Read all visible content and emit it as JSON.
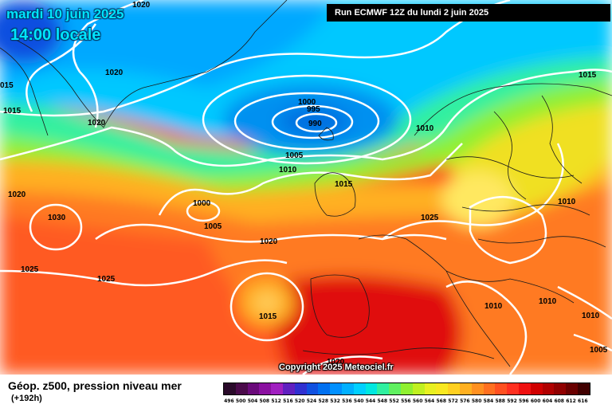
{
  "header": {
    "date": "mardi 10 juin 2025",
    "time": "14:00 locale",
    "run": "Run ECMWF 12Z du lundi 2 juin 2025",
    "copyright": "Copyright 2025 Meteociel.fr"
  },
  "legend": {
    "title": "Géop. z500, pression niveau mer",
    "subtitle": "(+192h)",
    "scale_values": [
      "496",
      "500",
      "504",
      "508",
      "512",
      "516",
      "520",
      "524",
      "528",
      "532",
      "536",
      "540",
      "544",
      "548",
      "552",
      "556",
      "560",
      "564",
      "568",
      "572",
      "576",
      "580",
      "584",
      "588",
      "592",
      "596",
      "600",
      "604",
      "608",
      "612",
      "616"
    ],
    "scale_colors": [
      "#2a0a2a",
      "#4a0a4a",
      "#6a0a7a",
      "#8a10a0",
      "#a020c0",
      "#6020c0",
      "#3030d0",
      "#1050e0",
      "#0070f0",
      "#0090ff",
      "#00b0ff",
      "#00d0ff",
      "#00e8e0",
      "#30f0a0",
      "#60f060",
      "#90f030",
      "#c0f020",
      "#e8f020",
      "#f8e820",
      "#ffd020",
      "#ffb020",
      "#ff9020",
      "#ff7020",
      "#ff5020",
      "#ff3020",
      "#ef1010",
      "#d00000",
      "#b00000",
      "#900000",
      "#6a0000",
      "#400000"
    ]
  },
  "map": {
    "pressure_labels": [
      {
        "text": "1020"
      },
      {
        "text": "1020"
      },
      {
        "text": "1020"
      },
      {
        "text": "015"
      },
      {
        "text": "1015"
      },
      {
        "text": "1000"
      },
      {
        "text": "995"
      },
      {
        "text": "990"
      },
      {
        "text": "1005"
      },
      {
        "text": "1010"
      },
      {
        "text": "1010"
      },
      {
        "text": "1015"
      },
      {
        "text": "1000"
      },
      {
        "text": "1005"
      },
      {
        "text": "1020"
      },
      {
        "text": "1020"
      },
      {
        "text": "1030"
      },
      {
        "text": "1025"
      },
      {
        "text": "1025"
      },
      {
        "text": "1015"
      },
      {
        "text": "1025"
      },
      {
        "text": "1010"
      },
      {
        "text": "1015"
      },
      {
        "text": "1010"
      },
      {
        "text": "1010"
      },
      {
        "text": "1010"
      },
      {
        "text": "1005"
      },
      {
        "text": "1020"
      }
    ]
  }
}
